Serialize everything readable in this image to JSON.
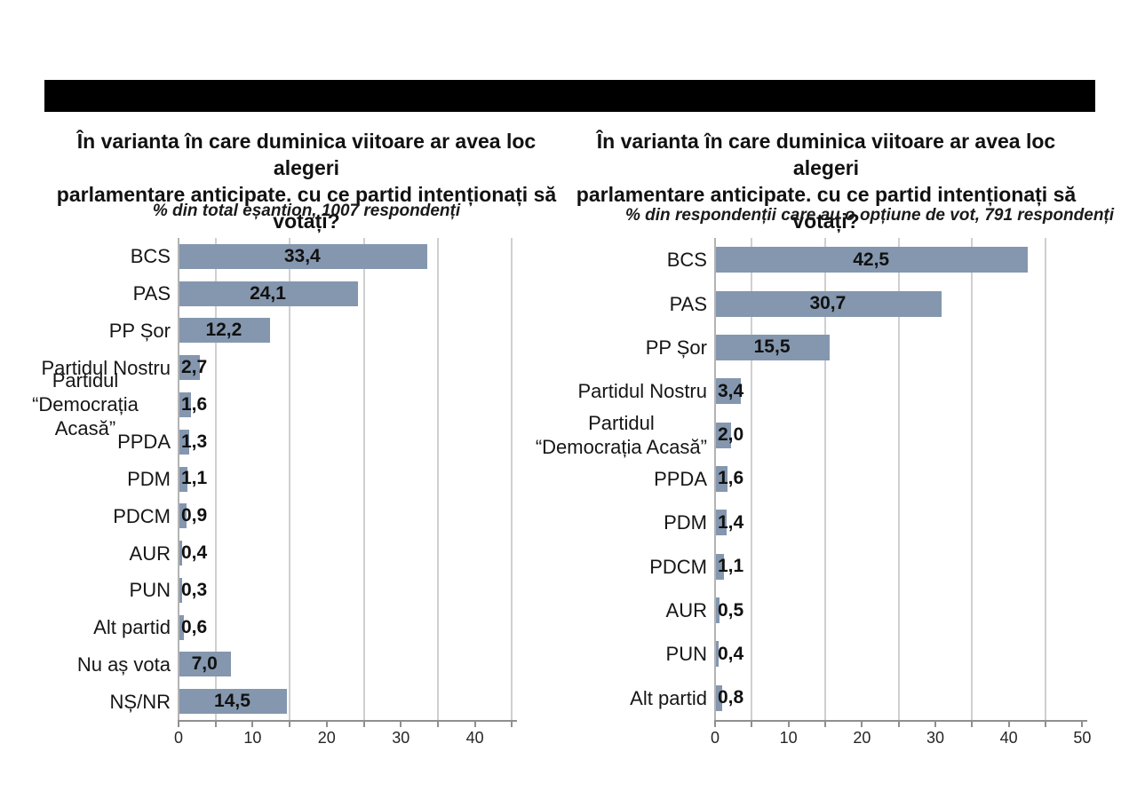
{
  "header": {
    "redacted_title_present": true
  },
  "styles": {
    "bar_color": "#8497AE",
    "grid_color": "#CFCFCF",
    "axis_color": "#8F8F8F",
    "text_color": "#161616",
    "redaction_color": "#000000",
    "background": "#FFFFFF"
  },
  "chart_data": [
    {
      "type": "bar",
      "orientation": "horizontal",
      "title": "În varianta în care duminica viitoare ar avea loc alegeri\nparlamentare anticipate. cu ce partid intenționați să votați?",
      "subtitle": "% din total eșantion, 1007 respondenți",
      "categories": [
        "BCS",
        "PAS",
        "PP Șor",
        "Partidul Nostru",
        "Partidul\n“Democrația Acasă”",
        "PPDA",
        "PDM",
        "PDCM",
        "AUR",
        "PUN",
        "Alt partid",
        "Nu aș vota",
        "NȘ/NR"
      ],
      "values": [
        33.4,
        24.1,
        12.2,
        2.7,
        1.6,
        1.3,
        1.1,
        0.9,
        0.4,
        0.3,
        0.6,
        7.0,
        14.5
      ],
      "value_labels": [
        "33,4",
        "24,1",
        "12,2",
        "2,7",
        "1,6",
        "1,3",
        "1,1",
        "0,9",
        "0,4",
        "0,3",
        "0,6",
        "7,0",
        "14,5"
      ],
      "xlabel": "",
      "ylabel": "",
      "xlim": [
        0,
        45.2
      ],
      "xticks": [
        0,
        10,
        20,
        30,
        40
      ],
      "xtick_labels": [
        "0",
        "10",
        "20",
        "30",
        "40"
      ],
      "gridlines": [
        5,
        15,
        25,
        35,
        45
      ],
      "minor_tick_step": 5,
      "grid": true,
      "legend": false
    },
    {
      "type": "bar",
      "orientation": "horizontal",
      "title": "În varianta în care duminica viitoare ar avea loc alegeri\nparlamentare anticipate. cu ce partid intenționați să votați?",
      "subtitle": "% din respondenții care au o opțiune de vot, 791 respondenți",
      "categories": [
        "BCS",
        "PAS",
        "PP Șor",
        "Partidul Nostru",
        "Partidul\n“Democrația Acasă”",
        "PPDA",
        "PDM",
        "PDCM",
        "AUR",
        "PUN",
        "Alt partid"
      ],
      "values": [
        42.5,
        30.7,
        15.5,
        3.4,
        2.0,
        1.6,
        1.4,
        1.1,
        0.5,
        0.4,
        0.8
      ],
      "value_labels": [
        "42,5",
        "30,7",
        "15,5",
        "3,4",
        "2,0",
        "1,6",
        "1,4",
        "1,1",
        "0,5",
        "0,4",
        "0,8"
      ],
      "xlabel": "",
      "ylabel": "",
      "xlim": [
        0,
        50.2
      ],
      "xticks": [
        0,
        10,
        20,
        30,
        40,
        50
      ],
      "xtick_labels": [
        "0",
        "10",
        "20",
        "30",
        "40",
        "50"
      ],
      "gridlines": [
        5,
        15,
        25,
        35,
        45
      ],
      "minor_tick_step": 5,
      "grid": true,
      "legend": false
    }
  ]
}
